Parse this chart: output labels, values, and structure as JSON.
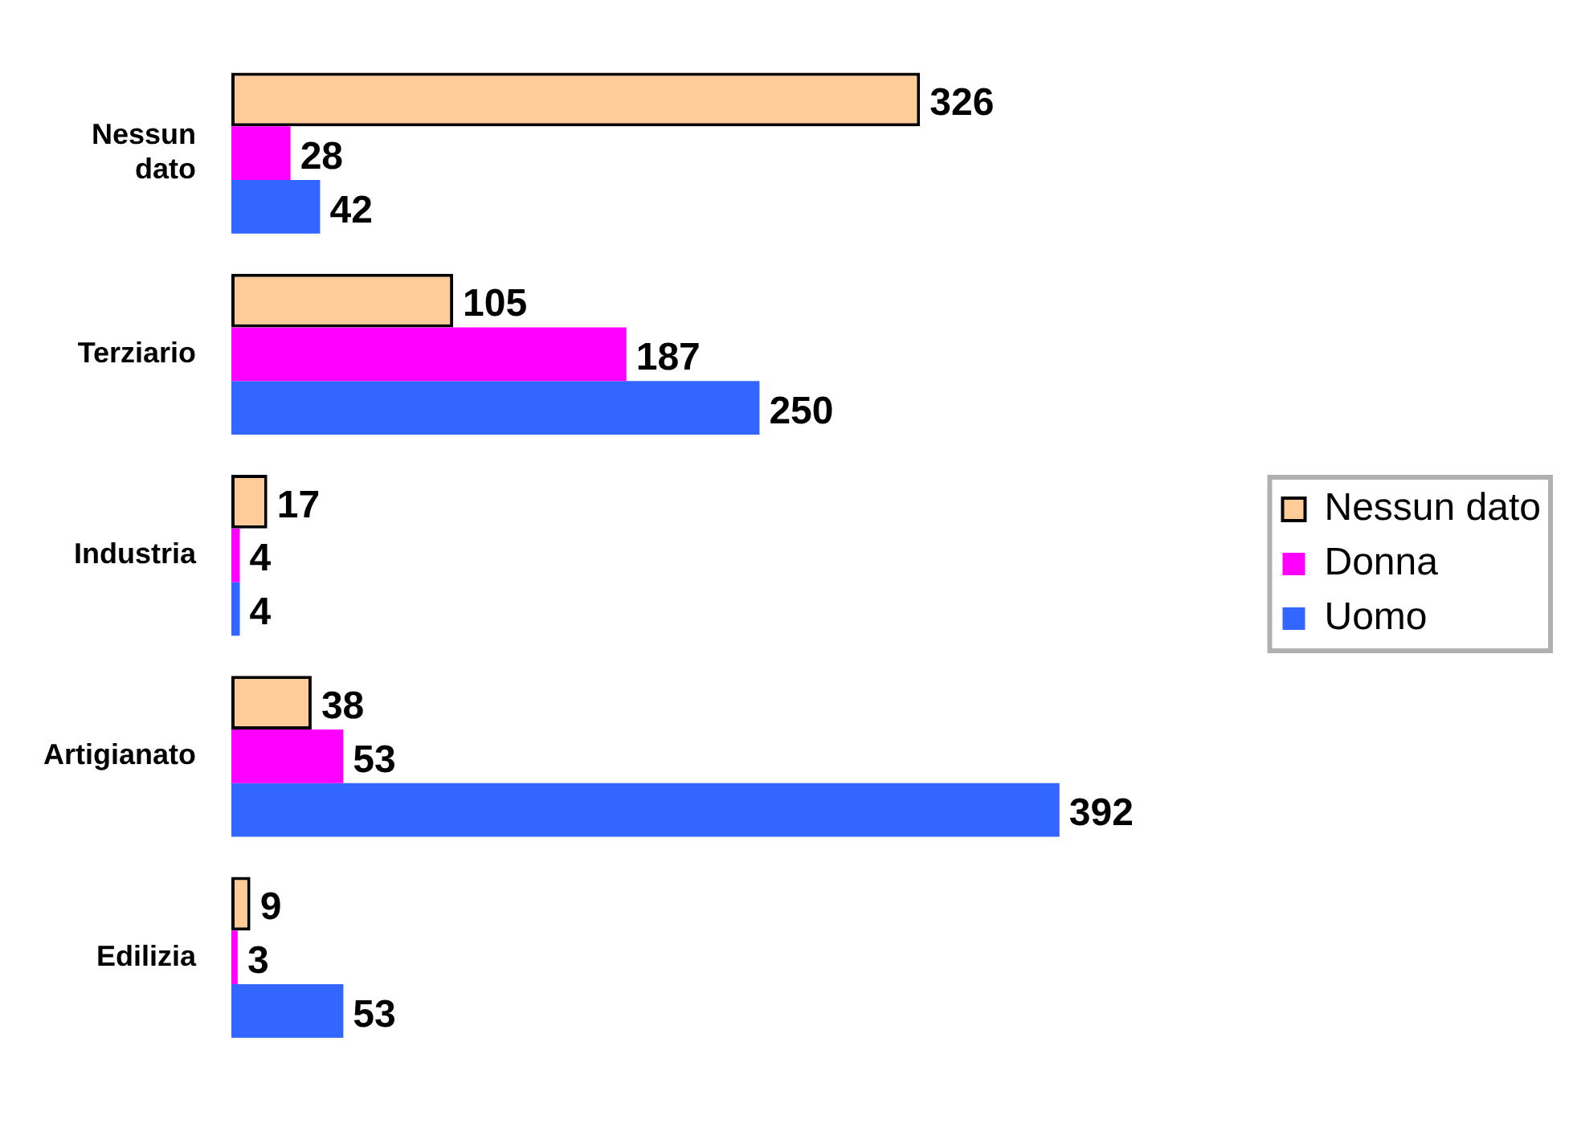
{
  "chart_data": {
    "type": "bar",
    "orientation": "horizontal",
    "categories": [
      "Nessun dato",
      "Terziario",
      "Industria",
      "Artigianato",
      "Edilizia"
    ],
    "series": [
      {
        "name": "Nessun dato",
        "color": "#ffcc99",
        "values": [
          326,
          105,
          17,
          38,
          9
        ]
      },
      {
        "name": "Donna",
        "color": "#ff00ff",
        "values": [
          28,
          187,
          4,
          53,
          3
        ]
      },
      {
        "name": "Uomo",
        "color": "#3366ff",
        "values": [
          42,
          250,
          4,
          392,
          53
        ]
      }
    ],
    "data_labels": true,
    "legend": "right"
  }
}
